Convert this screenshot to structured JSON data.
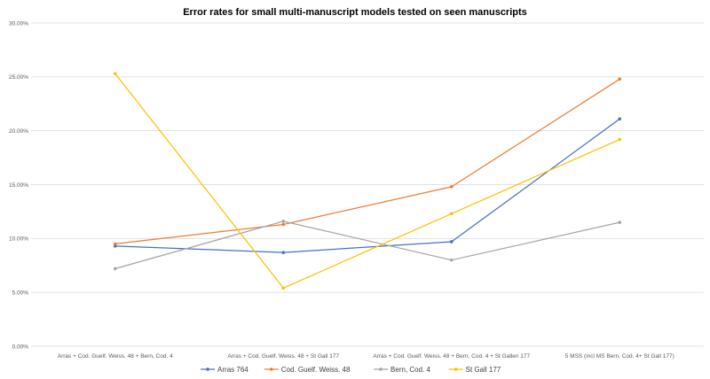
{
  "chart_data": {
    "type": "line",
    "title": "Error rates for small multi-manuscript models tested on seen manuscripts",
    "xlabel": "",
    "ylabel": "",
    "categories": [
      "Arras + Cod. Guelf. Weiss. 48 + Bern, Cod. 4",
      "Arras + Cod. Guelf. Weiss. 48 + St Gall 177",
      "Arras + Cod. Guelf. Weiss. 48 + Bern, Cod. 4 + St Gallen 177",
      "5 MSS (incl MS Bern, Cod. 4+ St Gall 177)"
    ],
    "ylim": [
      0,
      30
    ],
    "yticks": [
      0,
      5,
      10,
      15,
      20,
      25,
      30
    ],
    "ytick_labels": [
      "0.00%",
      "5.00%",
      "10.00%",
      "15.00%",
      "20.00%",
      "25.00%",
      "30.00%"
    ],
    "grid": true,
    "legend_position": "bottom",
    "series": [
      {
        "name": "Arras 764",
        "color": "#4472C4",
        "values": [
          9.3,
          8.7,
          9.7,
          21.1
        ]
      },
      {
        "name": "Cod. Guelf. Weiss. 48",
        "color": "#ED7D31",
        "values": [
          9.5,
          11.3,
          14.8,
          24.8
        ]
      },
      {
        "name": "Bern, Cod. 4",
        "color": "#A5A5A5",
        "values": [
          7.2,
          11.6,
          8.0,
          11.5
        ]
      },
      {
        "name": "St Gall 177",
        "color": "#FFC000",
        "values": [
          25.3,
          5.4,
          12.3,
          19.2
        ]
      }
    ]
  }
}
